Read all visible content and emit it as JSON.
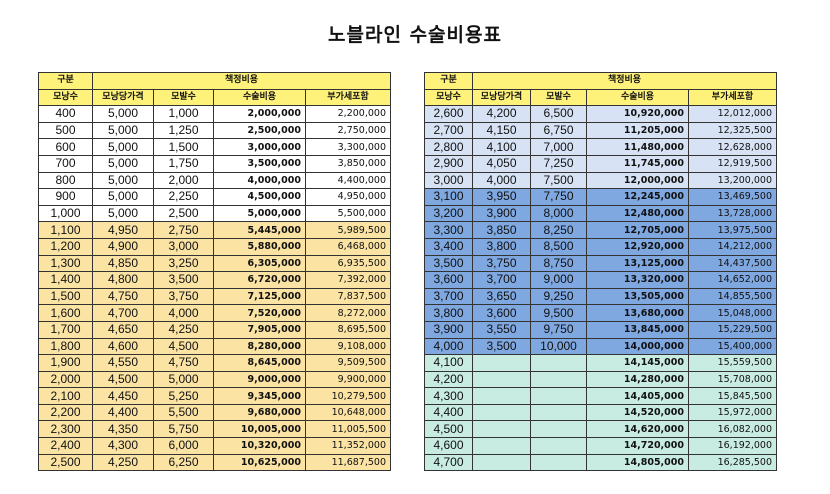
{
  "title": "노블라인 수술비용표",
  "headers": {
    "category": "구분",
    "pricing": "책정비용",
    "graft_count": "모낭수",
    "graft_unit_price": "모낭당가격",
    "hair_count": "모발수",
    "surgery_cost": "수술비용",
    "vat_included": "부가세포함"
  },
  "colors": {
    "header": "#fff27a",
    "white": "#ffffff",
    "yellow": "#fbe3a3",
    "lightblue": "#d7e3f5",
    "blue": "#7fa7e0",
    "teal": "#c9ece2"
  },
  "left_table": {
    "rows": [
      {
        "graft_count": "400",
        "graft_unit_price": "5,000",
        "hair_count": "1,000",
        "surgery_cost": "2,000,000",
        "vat_included": "2,200,000",
        "band": "white"
      },
      {
        "graft_count": "500",
        "graft_unit_price": "5,000",
        "hair_count": "1,250",
        "surgery_cost": "2,500,000",
        "vat_included": "2,750,000",
        "band": "white"
      },
      {
        "graft_count": "600",
        "graft_unit_price": "5,000",
        "hair_count": "1,500",
        "surgery_cost": "3,000,000",
        "vat_included": "3,300,000",
        "band": "white"
      },
      {
        "graft_count": "700",
        "graft_unit_price": "5,000",
        "hair_count": "1,750",
        "surgery_cost": "3,500,000",
        "vat_included": "3,850,000",
        "band": "white"
      },
      {
        "graft_count": "800",
        "graft_unit_price": "5,000",
        "hair_count": "2,000",
        "surgery_cost": "4,000,000",
        "vat_included": "4,400,000",
        "band": "white"
      },
      {
        "graft_count": "900",
        "graft_unit_price": "5,000",
        "hair_count": "2,250",
        "surgery_cost": "4,500,000",
        "vat_included": "4,950,000",
        "band": "white"
      },
      {
        "graft_count": "1,000",
        "graft_unit_price": "5,000",
        "hair_count": "2,500",
        "surgery_cost": "5,000,000",
        "vat_included": "5,500,000",
        "band": "white"
      },
      {
        "graft_count": "1,100",
        "graft_unit_price": "4,950",
        "hair_count": "2,750",
        "surgery_cost": "5,445,000",
        "vat_included": "5,989,500",
        "band": "yellow"
      },
      {
        "graft_count": "1,200",
        "graft_unit_price": "4,900",
        "hair_count": "3,000",
        "surgery_cost": "5,880,000",
        "vat_included": "6,468,000",
        "band": "yellow"
      },
      {
        "graft_count": "1,300",
        "graft_unit_price": "4,850",
        "hair_count": "3,250",
        "surgery_cost": "6,305,000",
        "vat_included": "6,935,500",
        "band": "yellow"
      },
      {
        "graft_count": "1,400",
        "graft_unit_price": "4,800",
        "hair_count": "3,500",
        "surgery_cost": "6,720,000",
        "vat_included": "7,392,000",
        "band": "yellow"
      },
      {
        "graft_count": "1,500",
        "graft_unit_price": "4,750",
        "hair_count": "3,750",
        "surgery_cost": "7,125,000",
        "vat_included": "7,837,500",
        "band": "yellow"
      },
      {
        "graft_count": "1,600",
        "graft_unit_price": "4,700",
        "hair_count": "4,000",
        "surgery_cost": "7,520,000",
        "vat_included": "8,272,000",
        "band": "yellow"
      },
      {
        "graft_count": "1,700",
        "graft_unit_price": "4,650",
        "hair_count": "4,250",
        "surgery_cost": "7,905,000",
        "vat_included": "8,695,500",
        "band": "yellow"
      },
      {
        "graft_count": "1,800",
        "graft_unit_price": "4,600",
        "hair_count": "4,500",
        "surgery_cost": "8,280,000",
        "vat_included": "9,108,000",
        "band": "yellow"
      },
      {
        "graft_count": "1,900",
        "graft_unit_price": "4,550",
        "hair_count": "4,750",
        "surgery_cost": "8,645,000",
        "vat_included": "9,509,500",
        "band": "yellow"
      },
      {
        "graft_count": "2,000",
        "graft_unit_price": "4,500",
        "hair_count": "5,000",
        "surgery_cost": "9,000,000",
        "vat_included": "9,900,000",
        "band": "yellow"
      },
      {
        "graft_count": "2,100",
        "graft_unit_price": "4,450",
        "hair_count": "5,250",
        "surgery_cost": "9,345,000",
        "vat_included": "10,279,500",
        "band": "yellow"
      },
      {
        "graft_count": "2,200",
        "graft_unit_price": "4,400",
        "hair_count": "5,500",
        "surgery_cost": "9,680,000",
        "vat_included": "10,648,000",
        "band": "yellow"
      },
      {
        "graft_count": "2,300",
        "graft_unit_price": "4,350",
        "hair_count": "5,750",
        "surgery_cost": "10,005,000",
        "vat_included": "11,005,500",
        "band": "yellow"
      },
      {
        "graft_count": "2,400",
        "graft_unit_price": "4,300",
        "hair_count": "6,000",
        "surgery_cost": "10,320,000",
        "vat_included": "11,352,000",
        "band": "yellow"
      },
      {
        "graft_count": "2,500",
        "graft_unit_price": "4,250",
        "hair_count": "6,250",
        "surgery_cost": "10,625,000",
        "vat_included": "11,687,500",
        "band": "yellow"
      }
    ]
  },
  "right_table": {
    "rows": [
      {
        "graft_count": "2,600",
        "graft_unit_price": "4,200",
        "hair_count": "6,500",
        "surgery_cost": "10,920,000",
        "vat_included": "12,012,000",
        "band": "lightblue"
      },
      {
        "graft_count": "2,700",
        "graft_unit_price": "4,150",
        "hair_count": "6,750",
        "surgery_cost": "11,205,000",
        "vat_included": "12,325,500",
        "band": "lightblue"
      },
      {
        "graft_count": "2,800",
        "graft_unit_price": "4,100",
        "hair_count": "7,000",
        "surgery_cost": "11,480,000",
        "vat_included": "12,628,000",
        "band": "lightblue"
      },
      {
        "graft_count": "2,900",
        "graft_unit_price": "4,050",
        "hair_count": "7,250",
        "surgery_cost": "11,745,000",
        "vat_included": "12,919,500",
        "band": "lightblue"
      },
      {
        "graft_count": "3,000",
        "graft_unit_price": "4,000",
        "hair_count": "7,500",
        "surgery_cost": "12,000,000",
        "vat_included": "13,200,000",
        "band": "lightblue"
      },
      {
        "graft_count": "3,100",
        "graft_unit_price": "3,950",
        "hair_count": "7,750",
        "surgery_cost": "12,245,000",
        "vat_included": "13,469,500",
        "band": "blue"
      },
      {
        "graft_count": "3,200",
        "graft_unit_price": "3,900",
        "hair_count": "8,000",
        "surgery_cost": "12,480,000",
        "vat_included": "13,728,000",
        "band": "blue"
      },
      {
        "graft_count": "3,300",
        "graft_unit_price": "3,850",
        "hair_count": "8,250",
        "surgery_cost": "12,705,000",
        "vat_included": "13,975,500",
        "band": "blue"
      },
      {
        "graft_count": "3,400",
        "graft_unit_price": "3,800",
        "hair_count": "8,500",
        "surgery_cost": "12,920,000",
        "vat_included": "14,212,000",
        "band": "blue"
      },
      {
        "graft_count": "3,500",
        "graft_unit_price": "3,750",
        "hair_count": "8,750",
        "surgery_cost": "13,125,000",
        "vat_included": "14,437,500",
        "band": "blue"
      },
      {
        "graft_count": "3,600",
        "graft_unit_price": "3,700",
        "hair_count": "9,000",
        "surgery_cost": "13,320,000",
        "vat_included": "14,652,000",
        "band": "blue"
      },
      {
        "graft_count": "3,700",
        "graft_unit_price": "3,650",
        "hair_count": "9,250",
        "surgery_cost": "13,505,000",
        "vat_included": "14,855,500",
        "band": "blue"
      },
      {
        "graft_count": "3,800",
        "graft_unit_price": "3,600",
        "hair_count": "9,500",
        "surgery_cost": "13,680,000",
        "vat_included": "15,048,000",
        "band": "blue"
      },
      {
        "graft_count": "3,900",
        "graft_unit_price": "3,550",
        "hair_count": "9,750",
        "surgery_cost": "13,845,000",
        "vat_included": "15,229,500",
        "band": "blue"
      },
      {
        "graft_count": "4,000",
        "graft_unit_price": "3,500",
        "hair_count": "10,000",
        "surgery_cost": "14,000,000",
        "vat_included": "15,400,000",
        "band": "blue"
      },
      {
        "graft_count": "4,100",
        "graft_unit_price": "",
        "hair_count": "",
        "surgery_cost": "14,145,000",
        "vat_included": "15,559,500",
        "band": "teal"
      },
      {
        "graft_count": "4,200",
        "graft_unit_price": "",
        "hair_count": "",
        "surgery_cost": "14,280,000",
        "vat_included": "15,708,000",
        "band": "teal"
      },
      {
        "graft_count": "4,300",
        "graft_unit_price": "",
        "hair_count": "",
        "surgery_cost": "14,405,000",
        "vat_included": "15,845,500",
        "band": "teal"
      },
      {
        "graft_count": "4,400",
        "graft_unit_price": "",
        "hair_count": "",
        "surgery_cost": "14,520,000",
        "vat_included": "15,972,000",
        "band": "teal"
      },
      {
        "graft_count": "4,500",
        "graft_unit_price": "",
        "hair_count": "",
        "surgery_cost": "14,620,000",
        "vat_included": "16,082,000",
        "band": "teal"
      },
      {
        "graft_count": "4,600",
        "graft_unit_price": "",
        "hair_count": "",
        "surgery_cost": "14,720,000",
        "vat_included": "16,192,000",
        "band": "teal"
      },
      {
        "graft_count": "4,700",
        "graft_unit_price": "",
        "hair_count": "",
        "surgery_cost": "14,805,000",
        "vat_included": "16,285,500",
        "band": "teal"
      }
    ]
  }
}
